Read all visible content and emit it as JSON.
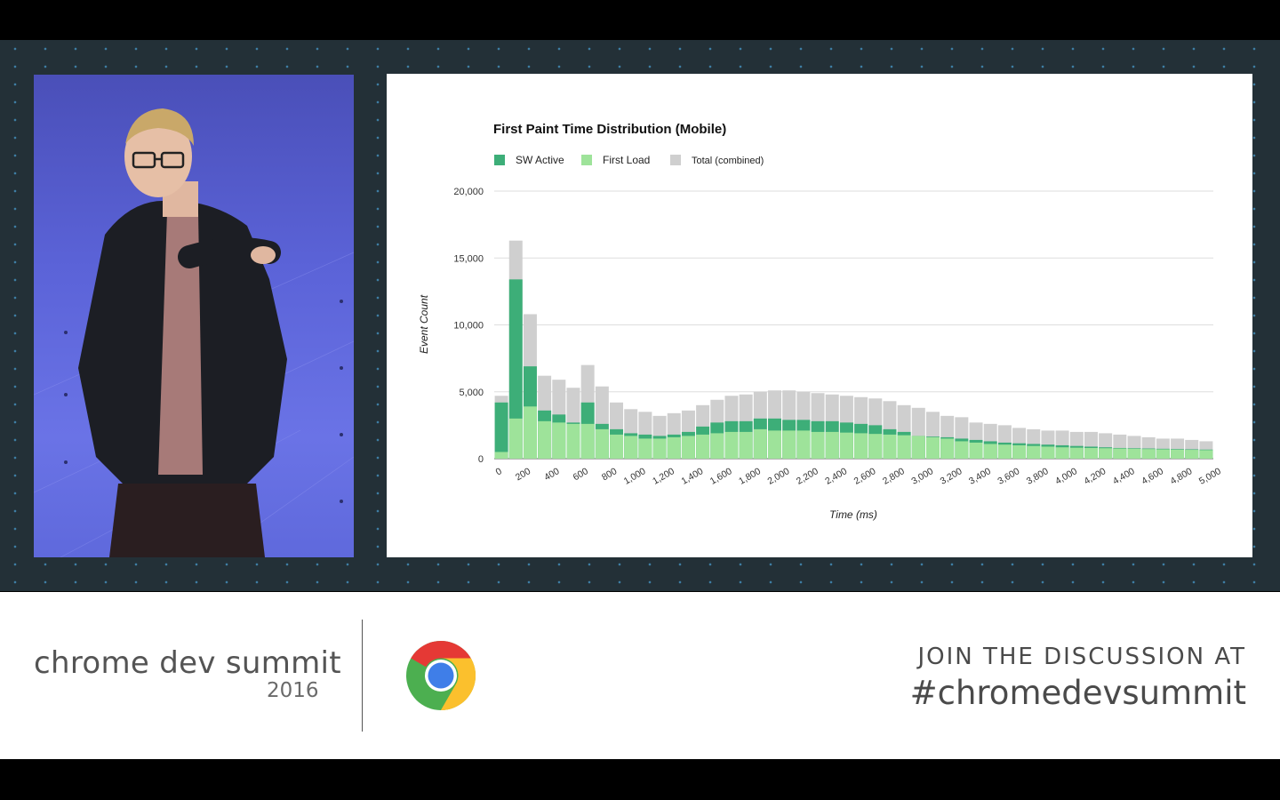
{
  "footer": {
    "brand": "chrome dev summit",
    "year": "2016",
    "cta": "JOIN THE DISCUSSION AT",
    "hashtag": "#chromedevsummit"
  },
  "colors": {
    "sw_active": "#3dae78",
    "first_load": "#9ee39a",
    "total": "#cfcfcf",
    "stage_bg": "#233037"
  },
  "chart_data": {
    "type": "bar",
    "title": "First Paint Time Distribution (Mobile)",
    "xlabel": "Time (ms)",
    "ylabel": "Event Count",
    "ylim": [
      0,
      20000
    ],
    "yticks": [
      "0",
      "5,000",
      "10,000",
      "15,000",
      "20,000"
    ],
    "xticks": [
      "0",
      "200",
      "400",
      "600",
      "800",
      "1,000",
      "1,200",
      "1,400",
      "1,600",
      "1,800",
      "2,000",
      "2,200",
      "2,400",
      "2,600",
      "2,800",
      "3,000",
      "3,200",
      "3,400",
      "3,600",
      "3,800",
      "4,000",
      "4,200",
      "4,400",
      "4,600",
      "4,800",
      "5,000"
    ],
    "legend_position": "top-left",
    "grid": true,
    "series": [
      {
        "name": "SW Active",
        "values": [
          4200,
          13400,
          6900,
          3600,
          3300,
          2600,
          2600,
          2200,
          1800,
          1700,
          1500,
          1500,
          1800,
          2000,
          2400,
          2700,
          2800,
          2800,
          3000,
          3000,
          2900,
          2900,
          2800,
          2800,
          2700,
          2600,
          2500,
          2200,
          2000,
          1700,
          1600,
          1500,
          1300,
          1200,
          1100,
          1050,
          1000,
          950,
          900,
          850,
          820,
          800,
          780,
          760,
          740,
          720,
          700,
          680,
          660,
          640
        ]
      },
      {
        "name": "First Load",
        "values": [
          500,
          3000,
          3900,
          2800,
          2700,
          2700,
          4200,
          2600,
          2200,
          1900,
          1800,
          1700,
          1600,
          1700,
          1800,
          1900,
          2000,
          2000,
          2200,
          2100,
          2100,
          2100,
          2000,
          2000,
          1950,
          1900,
          1850,
          1800,
          1750,
          1700,
          1650,
          1600,
          1500,
          1400,
          1300,
          1200,
          1150,
          1100,
          1050,
          1000,
          950,
          900,
          850,
          800,
          780,
          760,
          740,
          720,
          700,
          680
        ]
      },
      {
        "name": "Total (combined)",
        "values": [
          4700,
          16300,
          10800,
          6200,
          5900,
          5300,
          7000,
          5400,
          4200,
          3700,
          3500,
          3200,
          3400,
          3600,
          4000,
          4400,
          4700,
          4800,
          5000,
          5100,
          5100,
          5000,
          4900,
          4800,
          4700,
          4600,
          4500,
          4300,
          4000,
          3800,
          3500,
          3200,
          3100,
          2700,
          2600,
          2500,
          2300,
          2200,
          2100,
          2100,
          2000,
          2000,
          1900,
          1800,
          1700,
          1600,
          1500,
          1500,
          1400,
          1300
        ]
      }
    ]
  }
}
